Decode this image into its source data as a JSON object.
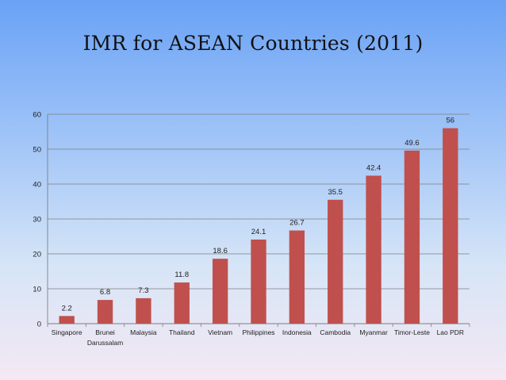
{
  "slide": {
    "title": "IMR for ASEAN Countries (2011)"
  },
  "chart_data": {
    "type": "bar",
    "title": "IMR for ASEAN Countries (2011)",
    "categories": [
      [
        "Singapore"
      ],
      [
        "Brunei",
        "Darussalam"
      ],
      [
        "Malaysia"
      ],
      [
        "Thailand"
      ],
      [
        "Vietnam"
      ],
      [
        "Philippines"
      ],
      [
        "Indonesia"
      ],
      [
        "Cambodia"
      ],
      [
        "Myanmar"
      ],
      [
        "Timor-Leste"
      ],
      [
        "Lao PDR"
      ]
    ],
    "values": [
      2.2,
      6.8,
      7.3,
      11.8,
      18.6,
      24.1,
      26.7,
      35.5,
      42.4,
      49.6,
      56
    ],
    "data_labels": [
      "2.2",
      "6.8",
      "7.3",
      "11.8",
      "18.6",
      "24.1",
      "26.7",
      "35.5",
      "42.4",
      "49.6",
      "56"
    ],
    "ylim": [
      0,
      60
    ],
    "yticks": [
      0,
      10,
      20,
      30,
      40,
      50,
      60
    ],
    "grid": true,
    "legend": "none",
    "bar_color": "#c0504d",
    "grid_color": "#7f7f7f",
    "xlabel": "",
    "ylabel": ""
  }
}
